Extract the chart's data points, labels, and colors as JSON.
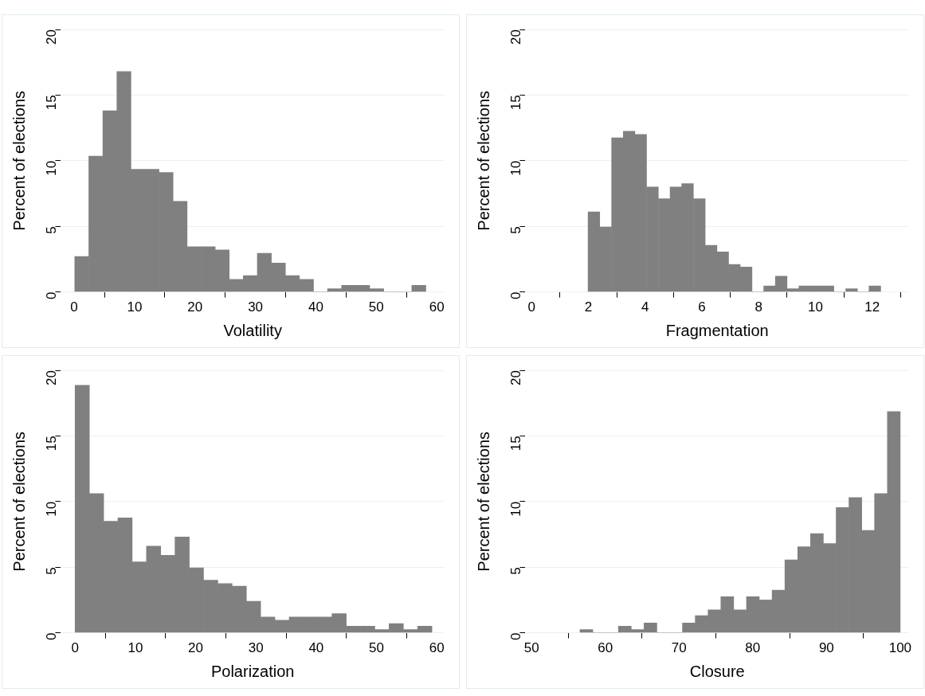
{
  "chart_data": [
    {
      "type": "histogram",
      "xlabel": "Volatility",
      "ylabel": "Percent of elections",
      "color": "#808080",
      "grid": "y",
      "bins": [
        0.1,
        2.42,
        4.75,
        7.07,
        9.4,
        11.72,
        14.04,
        16.37,
        18.69,
        21.02,
        23.34,
        25.66,
        27.99,
        30.31,
        32.64,
        34.96,
        37.28,
        39.61,
        41.93,
        44.26,
        46.58,
        48.9,
        51.23,
        53.55,
        55.88,
        58.2
      ],
      "values": [
        2.7,
        10.35,
        13.8,
        16.8,
        9.35,
        9.35,
        9.1,
        6.9,
        3.45,
        3.45,
        3.2,
        0.95,
        1.25,
        2.95,
        2.2,
        1.25,
        0.95,
        0,
        0.25,
        0.5,
        0.5,
        0.25,
        0,
        0,
        0.5
      ],
      "xlim": [
        -2.2,
        61.3
      ],
      "xticks": [
        0,
        10,
        20,
        30,
        40,
        50,
        60
      ],
      "ylim": [
        0,
        20
      ],
      "yticks": [
        0,
        5,
        10,
        15,
        20
      ]
    },
    {
      "type": "histogram",
      "xlabel": "Fragmentation",
      "ylabel": "Percent of elections",
      "color": "#808080",
      "grid": "y",
      "bins": [
        1.99,
        2.4,
        2.82,
        3.23,
        3.64,
        4.05,
        4.47,
        4.88,
        5.29,
        5.7,
        6.12,
        6.53,
        6.94,
        7.35,
        7.77,
        8.18,
        8.59,
        9.0,
        9.42,
        9.83,
        10.24,
        10.65,
        11.07,
        11.48,
        11.89,
        12.3
      ],
      "values": [
        6.1,
        4.95,
        11.75,
        12.25,
        12.0,
        8.0,
        7.1,
        8.0,
        8.25,
        7.1,
        3.55,
        3.05,
        2.1,
        1.9,
        0,
        0.45,
        1.2,
        0.25,
        0.45,
        0.45,
        0.45,
        0,
        0.25,
        0,
        0.45
      ],
      "xlim": [
        -0.22,
        13.3
      ],
      "xticks": [
        0,
        2,
        4,
        6,
        8,
        10,
        12
      ],
      "ylim": [
        0,
        20
      ],
      "yticks": [
        0,
        5,
        10,
        15,
        20
      ]
    },
    {
      "type": "histogram",
      "xlabel": "Polarization",
      "ylabel": "Percent of elections",
      "color": "#808080",
      "grid": "y",
      "bins": [
        0,
        2.37,
        4.74,
        7.1,
        9.47,
        11.84,
        14.21,
        16.58,
        18.94,
        21.31,
        23.68,
        26.05,
        28.42,
        30.78,
        33.15,
        35.52,
        37.89,
        40.26,
        42.62,
        44.99,
        47.36,
        49.73,
        52.1,
        54.46,
        56.83,
        59.2
      ],
      "values": [
        18.85,
        10.6,
        8.5,
        8.75,
        5.4,
        6.6,
        5.9,
        7.3,
        4.95,
        4.0,
        3.75,
        3.55,
        2.4,
        1.2,
        0.95,
        1.2,
        1.2,
        1.2,
        1.45,
        0.5,
        0.5,
        0.25,
        0.7,
        0.25,
        0.5
      ],
      "xlim": [
        -2.36,
        61.3
      ],
      "xticks": [
        0,
        10,
        20,
        30,
        40,
        50,
        60
      ],
      "ylim": [
        0,
        20
      ],
      "yticks": [
        0,
        5,
        10,
        15,
        20
      ]
    },
    {
      "type": "histogram",
      "xlabel": "Closure",
      "ylabel": "Percent of elections",
      "color": "#808080",
      "grid": "y",
      "bins": [
        56.57,
        58.31,
        60.04,
        61.78,
        63.52,
        65.26,
        66.99,
        68.73,
        70.47,
        72.2,
        73.94,
        75.68,
        77.41,
        79.15,
        80.89,
        82.63,
        84.36,
        86.1,
        87.84,
        89.57,
        91.31,
        93.05,
        94.78,
        96.52,
        98.26,
        100.0
      ],
      "values": [
        0.25,
        0,
        0,
        0.5,
        0.25,
        0.75,
        0,
        0,
        0.75,
        1.3,
        1.75,
        2.75,
        1.75,
        2.75,
        2.5,
        3.25,
        5.55,
        6.55,
        7.55,
        6.8,
        9.55,
        10.3,
        7.8,
        10.6,
        16.85
      ],
      "xlim": [
        49.16,
        101.2
      ],
      "xticks": [
        50,
        60,
        70,
        80,
        90,
        100
      ],
      "ylim": [
        0,
        20
      ],
      "yticks": [
        0,
        5,
        10,
        15,
        20
      ]
    }
  ]
}
